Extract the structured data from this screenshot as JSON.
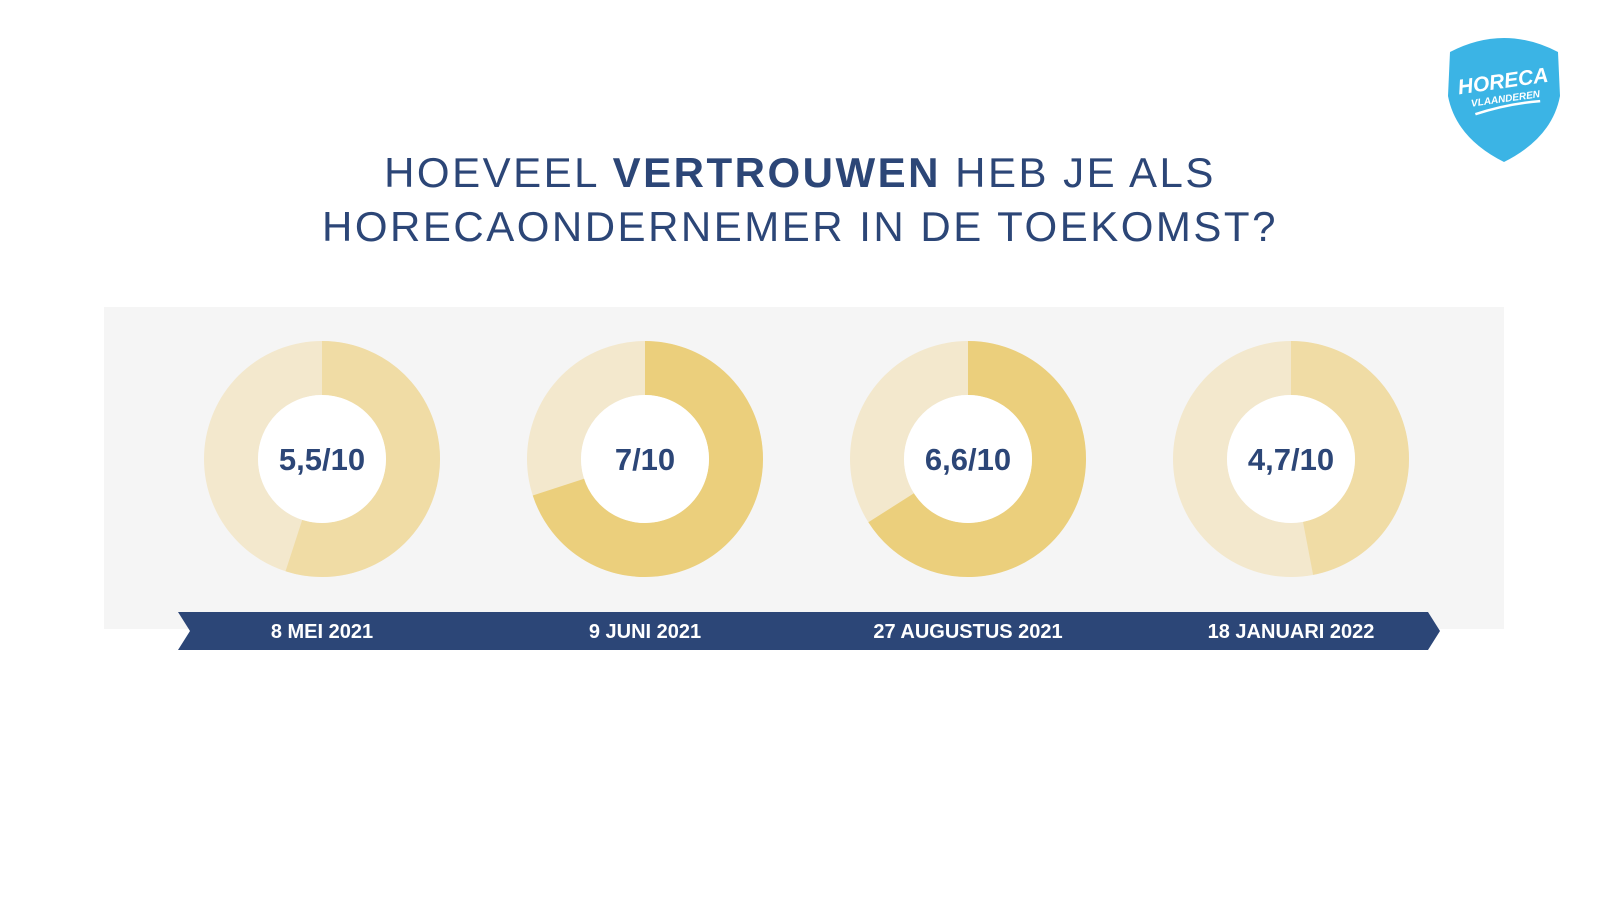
{
  "title": {
    "line1_pre": "HOEVEEL ",
    "line1_bold": "VERTROUWEN",
    "line1_post": " HEB JE ALS",
    "line2": "HORECAONDERNEMER IN DE TOEKOMST?"
  },
  "logo": {
    "line1": "HORECA",
    "line2": "VLAANDEREN",
    "color": "#3bb4e5"
  },
  "colors": {
    "title": "#2c4677",
    "ribbon": "#2c4677",
    "ring_track": "#f3e8cd",
    "value_label": "#2c4677"
  },
  "chart_data": {
    "type": "pie",
    "max": 10,
    "series": [
      {
        "date": "8 MEI 2021",
        "value": 5.5,
        "label": "5,5/10",
        "color": "#f0dca5"
      },
      {
        "date": "9 JUNI 2021",
        "value": 7,
        "label": "7/10",
        "color": "#ebcf7c"
      },
      {
        "date": "27 AUGUSTUS 2021",
        "value": 6.6,
        "label": "6,6/10",
        "color": "#ebcf7c"
      },
      {
        "date": "18 JANUARI 2022",
        "value": 4.7,
        "label": "4,7/10",
        "color": "#f0dca5"
      }
    ]
  }
}
